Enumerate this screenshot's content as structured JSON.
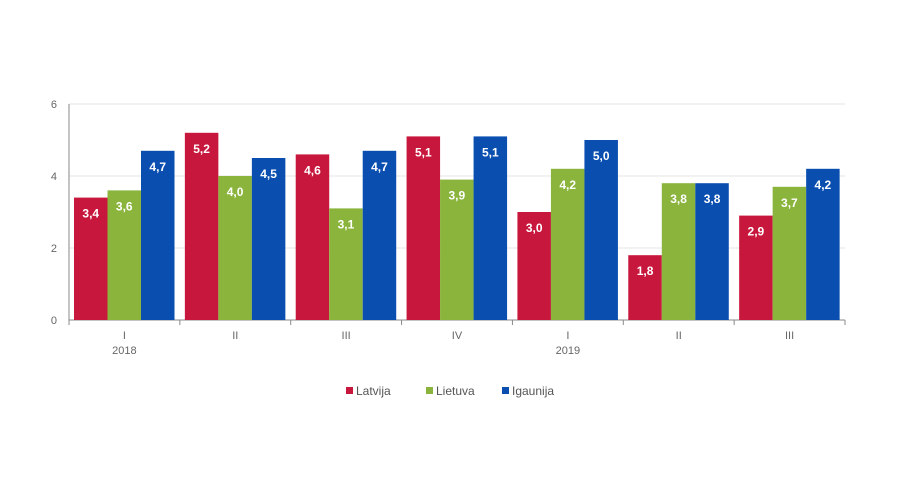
{
  "chart_data": {
    "type": "bar",
    "categories": [
      "I",
      "II",
      "III",
      "IV",
      "I",
      "II",
      "III"
    ],
    "year_labels": [
      {
        "index": 0,
        "label": "2018"
      },
      {
        "index": 4,
        "label": "2019"
      }
    ],
    "series": [
      {
        "name": "Latvija",
        "color": "#c8173c",
        "values": [
          3.4,
          5.2,
          4.6,
          5.1,
          3.0,
          1.8,
          2.9
        ],
        "labels": [
          "3,4",
          "5,2",
          "4,6",
          "5,1",
          "3,0",
          "1,8",
          "2,9"
        ]
      },
      {
        "name": "Lietuva",
        "color": "#8ab43c",
        "values": [
          3.6,
          4.0,
          3.1,
          3.9,
          4.2,
          3.8,
          3.7
        ],
        "labels": [
          "3,6",
          "4,0",
          "3,1",
          "3,9",
          "4,2",
          "3,8",
          "3,7"
        ]
      },
      {
        "name": "Igaunija",
        "color": "#0a4fb0",
        "values": [
          4.7,
          4.5,
          4.7,
          5.1,
          5.0,
          3.8,
          4.2
        ],
        "labels": [
          "4,7",
          "4,5",
          "4,7",
          "5,1",
          "5,0",
          "3,8",
          "4,2"
        ]
      }
    ],
    "yticks": [
      "0",
      "2",
      "4",
      "6"
    ],
    "ylim": [
      0,
      6
    ],
    "grid": true,
    "legend": "bottom-center"
  }
}
